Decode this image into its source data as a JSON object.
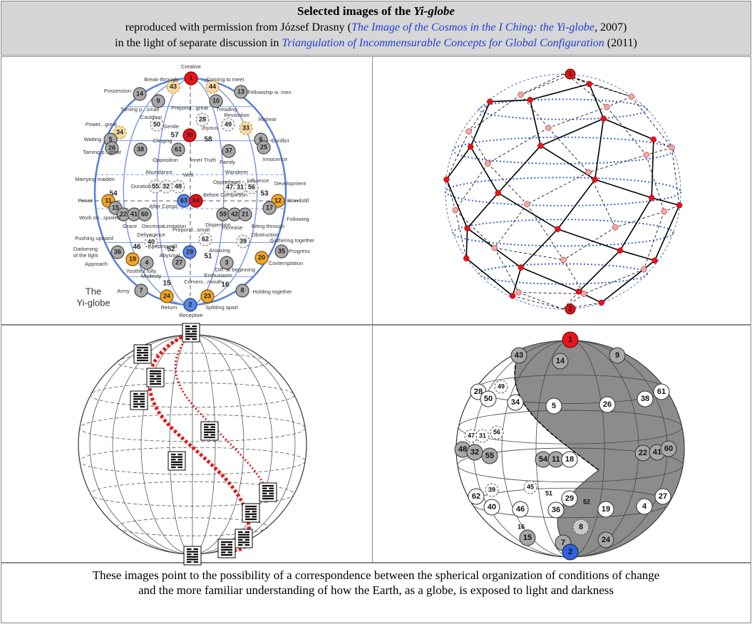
{
  "header": {
    "title": "Selected images of the ",
    "title_em": "Yi-globe",
    "line1": [
      "reproduced with permission from József Drasny (",
      "The Image of the Cosmos in the I Ching: the Yi-globe",
      ", 2007)"
    ],
    "line2": [
      "in the light of separate discussion in ",
      "Triangulation of Incommensurable Concepts for Global Configuration",
      " (2011)"
    ]
  },
  "images": {
    "yi_globe": {
      "nodes": [
        "1",
        "43",
        "44",
        "14",
        "13",
        "9",
        "10",
        "50",
        "28",
        "49",
        "33",
        "34",
        "57",
        "30",
        "58",
        "5",
        "26",
        "6",
        "25",
        "38",
        "61",
        "37",
        "55",
        "32",
        "48",
        "47",
        "31",
        "56",
        "54",
        "53",
        "11",
        "63",
        "64",
        "12",
        "15",
        "17",
        "22",
        "41",
        "60",
        "59",
        "42",
        "21",
        "40",
        "62",
        "39",
        "46",
        "52",
        "29",
        "35",
        "36",
        "51",
        "19",
        "4",
        "27",
        "3",
        "20",
        "15",
        "16",
        "7",
        "8",
        "24",
        "23",
        "2"
      ],
      "labels": [
        "Creative",
        "Break-through",
        "Coming to meet",
        "Possession",
        "Fellowship w. men",
        "Taming p...small",
        "Treading",
        "Prepond...great",
        "Cauldron",
        "Revolution",
        "Retreat",
        "Power...great",
        "Gentle",
        "Joyous",
        "Clinging",
        "Waiting",
        "Conflict",
        "Taming p...great",
        "Opposition",
        "Inner Truth",
        "Family",
        "Innocence",
        "Abundance",
        "Well",
        "Wanderer",
        "Marrying maiden",
        "Oppression",
        "Influence",
        "Development",
        "Duration",
        "Before Completion",
        "Peace",
        "Standstill",
        "After Compl.",
        "Following",
        "Work on...spoiled",
        "Grace",
        "Decrease",
        "Limitation",
        "Dispersion",
        "Increase",
        "Biting through",
        "Prepond...small",
        "Pushing upward",
        "Deliverance",
        "Obstruction",
        "Gathering together",
        "Keeping still",
        "Arousing",
        "Progress",
        "Darkening",
        "of the light",
        "Abysmal",
        "Contemplation",
        "Approach",
        "Youthful folly",
        "Diff. at beginning",
        "Modesty",
        "Enthusiasm",
        "Corners...mouth",
        "The",
        "Yi-globe",
        "Army",
        "Holding together",
        "Return",
        "Splitting apart",
        "Receptive"
      ]
    },
    "polyhedron": {
      "nodes": [
        "1",
        "2"
      ]
    },
    "light_globe": {
      "nodes": [
        "1",
        "43",
        "14",
        "9",
        "49",
        "28",
        "50",
        "34",
        "5",
        "26",
        "38",
        "61",
        "47",
        "31",
        "56",
        "48",
        "32",
        "55",
        "54",
        "11",
        "18",
        "22",
        "41",
        "60",
        "45",
        "39",
        "62",
        "40",
        "51",
        "29",
        "52",
        "46",
        "36",
        "19",
        "4",
        "27",
        "16",
        "15",
        "8",
        "7",
        "24",
        "2"
      ]
    }
  },
  "footer": {
    "line1": "These images point to the possibility of a correspondence between the spherical organization of conditions of change",
    "line2": "and the more familiar understanding of how the Earth, as a globe, is exposed to light and darkness"
  }
}
